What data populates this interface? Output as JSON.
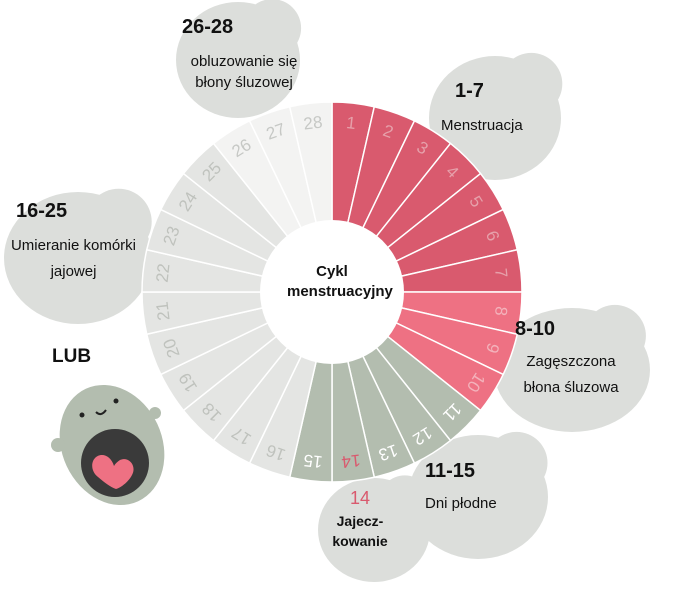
{
  "title": "Cykl menstruacyjny",
  "days": 28,
  "phases": [
    {
      "range": "1-7",
      "label": "Menstruacja",
      "from": 1,
      "to": 7,
      "color": "#d95a6e",
      "num_color": "#e6a0aa"
    },
    {
      "range": "8-10",
      "label": "Zagęszczona błona śluzowa",
      "from": 8,
      "to": 10,
      "color": "#ee7183",
      "num_color": "#f3b2bb"
    },
    {
      "range": "11-15",
      "label": "Dni płodne",
      "from": 11,
      "to": 15,
      "color": "#b3bdaf",
      "num_color": "#ffffff"
    },
    {
      "range": "16-25",
      "label": "Umieranie komórki jajowej",
      "from": 16,
      "to": 25,
      "color": "#e4e5e3",
      "num_color": "#bfc2bd"
    },
    {
      "range": "26-28",
      "label": "obluzowanie się błony śluzowej",
      "from": 26,
      "to": 28,
      "color": "#f3f3f2",
      "num_color": "#c6c8c5"
    }
  ],
  "ovulation": {
    "day": "14",
    "label": "Jajeczkowanie",
    "label_line1": "Jajecz-",
    "label_line2": "kowanie",
    "color": "#d95a6e"
  },
  "or_label": "LUB",
  "bubble_color": "#dcdedb"
}
